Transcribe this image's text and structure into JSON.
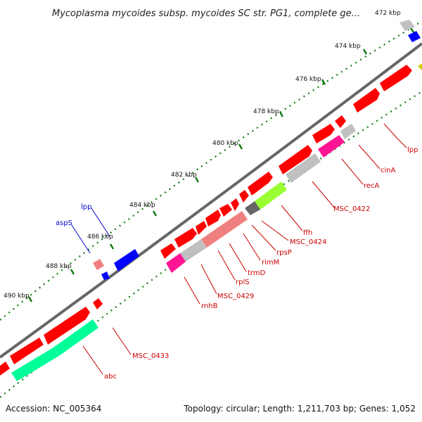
{
  "title": "Mycoplasma mycoides subsp. mycoides SC str. PG1, complete ge...",
  "footer": {
    "accession": "Accession: NC_005364",
    "summary": "Topology: circular; Length: 1,211,703 bp; Genes: 1,052"
  },
  "colors": {
    "red": "#ff0000",
    "gray": "#c0c0c0",
    "darkgray": "#666666",
    "salmon": "#f08080",
    "pink": "#ff1493",
    "green": "#00ff99",
    "lime": "#99ff33",
    "blue": "#0000ff",
    "yellow": "#cccc00",
    "label_red": "#cc0000",
    "label_blue": "#0000cc",
    "tick": "#117711",
    "backbone": "#777777"
  },
  "ticks": [
    "472 kbp",
    "474 kbp",
    "476 kbp",
    "478 kbp",
    "480 kbp",
    "482 kbp",
    "484 kbp",
    "486 kbp",
    "488 kbp",
    "490 kbp"
  ],
  "gene_labels_outer": [
    "lpp",
    "aspS"
  ],
  "gene_labels_inner": [
    "lpp",
    "cinA",
    "recA",
    "MSC_0422",
    "ffh",
    "MSC_0424",
    "rpsP",
    "rimM",
    "trmD",
    "rplS",
    "MSC_0429",
    "rnhB",
    "MSC_0433",
    "abc"
  ]
}
